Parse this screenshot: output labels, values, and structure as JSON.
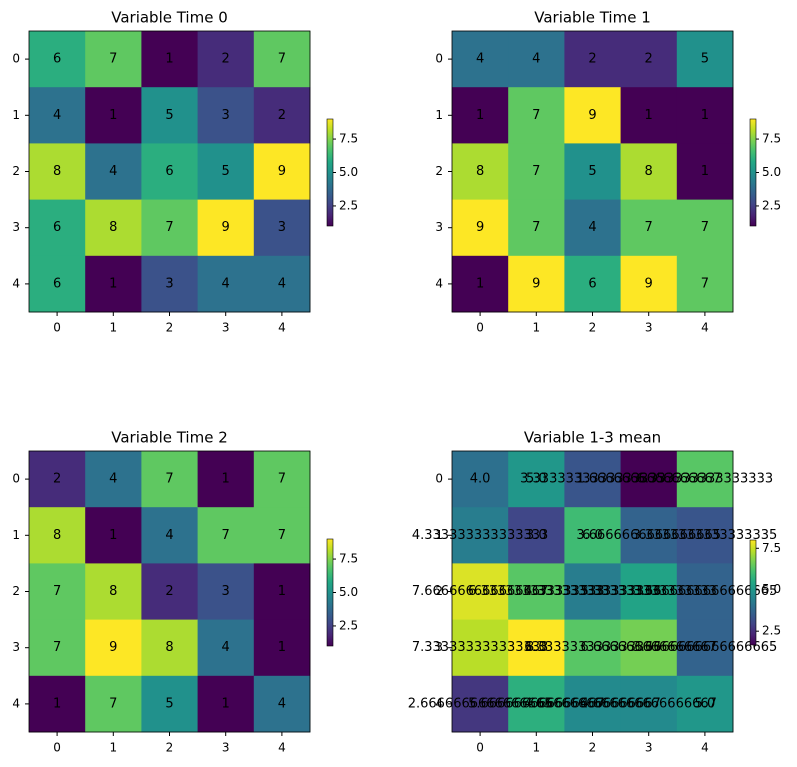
{
  "chart_data": [
    {
      "type": "heatmap",
      "title": "Variable Time 0",
      "colormap": "viridis",
      "values": [
        [
          6,
          7,
          1,
          2,
          7
        ],
        [
          4,
          1,
          5,
          3,
          2
        ],
        [
          8,
          4,
          6,
          5,
          9
        ],
        [
          6,
          8,
          7,
          9,
          3
        ],
        [
          6,
          1,
          3,
          4,
          4
        ]
      ],
      "xlim": [
        -0.5,
        4.5
      ],
      "ylim": [
        4.5,
        -0.5
      ],
      "xticks": [
        0,
        1,
        2,
        3,
        4
      ],
      "yticks": [
        0,
        1,
        2,
        3,
        4
      ],
      "clim": [
        1,
        9
      ],
      "cticks": [
        2.5,
        {
          "value": 5,
          "label": "5.0"
        },
        7.5
      ]
    },
    {
      "type": "heatmap",
      "title": "Variable Time 1",
      "colormap": "viridis",
      "values": [
        [
          4,
          4,
          2,
          2,
          5
        ],
        [
          1,
          7,
          9,
          1,
          1
        ],
        [
          8,
          7,
          5,
          8,
          1
        ],
        [
          9,
          7,
          4,
          7,
          7
        ],
        [
          1,
          9,
          6,
          9,
          7
        ]
      ],
      "xlim": [
        -0.5,
        4.5
      ],
      "ylim": [
        4.5,
        -0.5
      ],
      "xticks": [
        0,
        1,
        2,
        3,
        4
      ],
      "yticks": [
        0,
        1,
        2,
        3,
        4
      ],
      "clim": [
        1,
        9
      ],
      "cticks": [
        2.5,
        {
          "value": 5,
          "label": "5.0"
        },
        7.5
      ]
    },
    {
      "type": "heatmap",
      "title": "Variable Time 2",
      "colormap": "viridis",
      "values": [
        [
          2,
          4,
          7,
          1,
          7
        ],
        [
          8,
          1,
          4,
          7,
          7
        ],
        [
          7,
          8,
          2,
          3,
          1
        ],
        [
          7,
          9,
          8,
          4,
          1
        ],
        [
          1,
          7,
          5,
          1,
          4
        ]
      ],
      "xlim": [
        -0.5,
        4.5
      ],
      "ylim": [
        4.5,
        -0.5
      ],
      "xticks": [
        0,
        1,
        2,
        3,
        4
      ],
      "yticks": [
        0,
        1,
        2,
        3,
        4
      ],
      "clim": [
        1,
        9
      ],
      "cticks": [
        2.5,
        {
          "value": 5,
          "label": "5.0"
        },
        7.5
      ]
    },
    {
      "type": "heatmap",
      "title": "Variable 1-3 mean",
      "colormap": "viridis",
      "values": [
        [
          4.0,
          5.0,
          3.3333333333333335,
          1.6666666666666667,
          6.333333333333333
        ],
        [
          4.333333333333333,
          3.0,
          6.0,
          3.6666666666666665,
          3.3333333333333335
        ],
        [
          7.666666666666667,
          6.333333333333333,
          4.333333333333333,
          5.333333333333333,
          3.6666666666666665
        ],
        [
          7.333333333333333,
          8.0,
          6.333333333333333,
          6.666666666666667,
          3.6666666666666665
        ],
        [
          2.6666666666666665,
          5.666666666666667,
          4.666666666666667,
          4.666666666666667,
          5.0
        ]
      ],
      "value_labels": [
        [
          "4.0",
          "5.0",
          "3.3333333333333335",
          "1.6666666666666667",
          "6.333333333333333"
        ],
        [
          "4.333333333333333",
          "3.0",
          "6.0",
          "3.6666666666666665",
          "3.3333333333333335"
        ],
        [
          "7.666666666666667",
          "6.333333333333333",
          "4.333333333333333",
          "5.333333333333333",
          "3.6666666666666665"
        ],
        [
          "7.333333333333333",
          "8.0",
          "6.333333333333333",
          "6.666666666666667",
          "3.6666666666666665"
        ],
        [
          "2.6666666666666665",
          "5.666666666666667",
          "4.666666666666667",
          "4.666666666666667",
          "5.0"
        ]
      ],
      "xlim": [
        -0.5,
        4.5
      ],
      "ylim": [
        4.5,
        -0.5
      ],
      "xticks": [
        0,
        1,
        2,
        3,
        4
      ],
      "yticks": [
        0,
        1,
        2,
        3,
        4
      ],
      "clim": [
        1.6666666666666667,
        8.0
      ],
      "cticks": [
        2.5,
        {
          "value": 5,
          "label": "5.0"
        },
        7.5
      ]
    }
  ]
}
